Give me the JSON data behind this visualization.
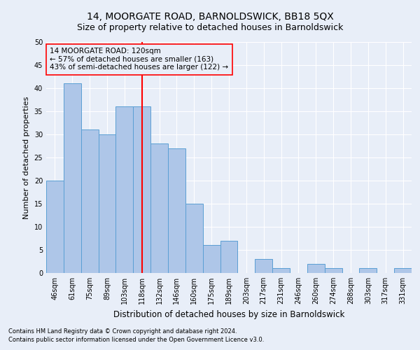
{
  "title1": "14, MOORGATE ROAD, BARNOLDSWICK, BB18 5QX",
  "title2": "Size of property relative to detached houses in Barnoldswick",
  "xlabel": "Distribution of detached houses by size in Barnoldswick",
  "ylabel": "Number of detached properties",
  "categories": [
    "46sqm",
    "61sqm",
    "75sqm",
    "89sqm",
    "103sqm",
    "118sqm",
    "132sqm",
    "146sqm",
    "160sqm",
    "175sqm",
    "189sqm",
    "203sqm",
    "217sqm",
    "231sqm",
    "246sqm",
    "260sqm",
    "274sqm",
    "288sqm",
    "303sqm",
    "317sqm",
    "331sqm"
  ],
  "values": [
    20,
    41,
    31,
    30,
    36,
    36,
    28,
    27,
    15,
    6,
    7,
    0,
    3,
    1,
    0,
    2,
    1,
    0,
    1,
    0,
    1
  ],
  "bar_color": "#aec6e8",
  "bar_edge_color": "#5a9fd4",
  "vline_x": 5,
  "vline_color": "red",
  "annotation_title": "14 MOORGATE ROAD: 120sqm",
  "annotation_line1": "← 57% of detached houses are smaller (163)",
  "annotation_line2": "43% of semi-detached houses are larger (122) →",
  "ylim": [
    0,
    50
  ],
  "yticks": [
    0,
    5,
    10,
    15,
    20,
    25,
    30,
    35,
    40,
    45,
    50
  ],
  "footnote1": "Contains HM Land Registry data © Crown copyright and database right 2024.",
  "footnote2": "Contains public sector information licensed under the Open Government Licence v3.0.",
  "bg_color": "#e8eef8",
  "grid_color": "#ffffff",
  "title1_fontsize": 10,
  "title2_fontsize": 9,
  "xlabel_fontsize": 8.5,
  "ylabel_fontsize": 8,
  "tick_fontsize": 7,
  "footnote_fontsize": 6,
  "annot_fontsize": 7.5
}
